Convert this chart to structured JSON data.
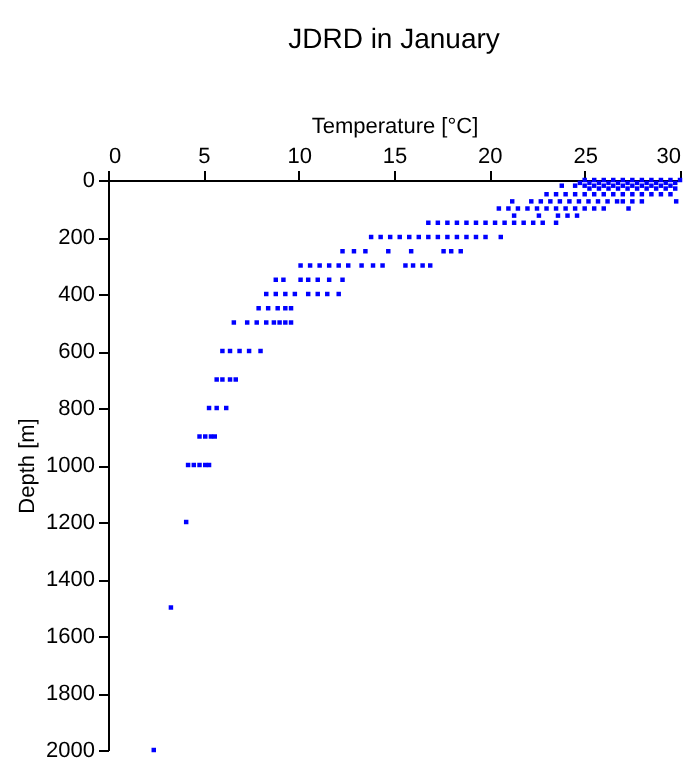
{
  "chart_data": {
    "type": "scatter",
    "title": "JDRD in January",
    "xlabel": "Temperature [°C]",
    "ylabel": "Depth [m]",
    "xlim": [
      0,
      30
    ],
    "xticks": [
      0,
      5,
      10,
      15,
      20,
      25,
      30
    ],
    "ylim": [
      2000,
      0
    ],
    "yticks": [
      0,
      200,
      400,
      600,
      800,
      1000,
      1200,
      1400,
      1600,
      1800,
      2000
    ],
    "grid": false,
    "legend": false,
    "marker": "square",
    "series": [
      {
        "color": "#0000ff",
        "x": [
          25.0,
          25.5,
          26.0,
          26.5,
          27.0,
          27.5,
          28.0,
          28.5,
          29.0,
          29.5,
          30.0,
          24.75,
          25.25,
          25.75,
          26.25,
          26.75,
          27.25,
          27.75,
          28.25,
          28.75,
          29.25,
          29.75,
          23.8,
          24.5,
          25.0,
          25.5,
          26.0,
          26.5,
          27.0,
          27.5,
          28.0,
          28.5,
          29.0,
          29.5,
          25.25,
          25.75,
          26.25,
          26.75,
          27.25,
          27.75,
          28.25,
          28.75,
          29.25,
          29.75,
          23.0,
          23.5,
          24.0,
          24.5,
          25.0,
          25.5,
          26.0,
          26.5,
          27.0,
          27.5,
          28.0,
          28.5,
          29.0,
          29.5,
          21.2,
          22.2,
          22.7,
          23.2,
          23.7,
          24.2,
          24.7,
          25.2,
          25.7,
          26.2,
          26.7,
          27.0,
          27.5,
          28.0,
          29.8,
          20.5,
          21.0,
          21.5,
          22.0,
          22.5,
          23.0,
          23.5,
          24.0,
          24.5,
          25.0,
          25.5,
          26.0,
          27.3,
          21.3,
          22.6,
          23.6,
          24.1,
          24.6,
          16.8,
          17.3,
          17.8,
          18.3,
          18.8,
          19.3,
          19.8,
          20.3,
          20.8,
          21.3,
          21.8,
          22.3,
          22.8,
          23.5,
          13.8,
          14.3,
          14.8,
          15.3,
          15.8,
          16.3,
          16.8,
          17.3,
          17.8,
          18.3,
          18.8,
          19.3,
          19.8,
          20.6,
          12.3,
          12.9,
          13.5,
          14.7,
          15.9,
          17.6,
          18.0,
          18.5,
          10.1,
          10.6,
          11.1,
          11.6,
          12.1,
          12.6,
          13.3,
          13.9,
          14.4,
          15.6,
          16.0,
          16.5,
          16.9,
          8.8,
          9.2,
          10.1,
          10.5,
          11.0,
          11.6,
          12.3,
          8.3,
          8.8,
          9.3,
          9.8,
          10.5,
          11.0,
          11.5,
          12.1,
          7.9,
          8.4,
          8.9,
          9.3,
          9.6,
          6.6,
          7.3,
          7.8,
          8.3,
          8.7,
          9.0,
          9.3,
          9.6,
          6.0,
          6.4,
          6.9,
          7.4,
          8.0,
          5.7,
          6.0,
          6.4,
          6.7,
          5.3,
          5.7,
          6.2,
          4.8,
          5.1,
          5.4,
          5.6,
          4.2,
          4.5,
          4.8,
          5.1,
          5.3,
          4.1,
          3.3,
          2.4
        ],
        "values": [
          0,
          0,
          0,
          0,
          0,
          0,
          0,
          0,
          0,
          0,
          0,
          10,
          10,
          10,
          10,
          10,
          10,
          10,
          10,
          10,
          10,
          10,
          20,
          20,
          20,
          20,
          20,
          20,
          20,
          20,
          20,
          20,
          20,
          20,
          30,
          30,
          30,
          30,
          30,
          30,
          30,
          30,
          30,
          30,
          50,
          50,
          50,
          50,
          50,
          50,
          50,
          50,
          50,
          50,
          50,
          50,
          50,
          50,
          75,
          75,
          75,
          75,
          75,
          75,
          75,
          75,
          75,
          75,
          75,
          75,
          75,
          75,
          75,
          100,
          100,
          100,
          100,
          100,
          100,
          100,
          100,
          100,
          100,
          100,
          100,
          100,
          125,
          125,
          125,
          125,
          125,
          150,
          150,
          150,
          150,
          150,
          150,
          150,
          150,
          150,
          150,
          150,
          150,
          150,
          150,
          200,
          200,
          200,
          200,
          200,
          200,
          200,
          200,
          200,
          200,
          200,
          200,
          200,
          200,
          250,
          250,
          250,
          250,
          250,
          250,
          250,
          250,
          300,
          300,
          300,
          300,
          300,
          300,
          300,
          300,
          300,
          300,
          300,
          300,
          300,
          350,
          350,
          350,
          350,
          350,
          350,
          350,
          400,
          400,
          400,
          400,
          400,
          400,
          400,
          400,
          450,
          450,
          450,
          450,
          450,
          500,
          500,
          500,
          500,
          500,
          500,
          500,
          500,
          600,
          600,
          600,
          600,
          600,
          700,
          700,
          700,
          700,
          800,
          800,
          800,
          900,
          900,
          900,
          900,
          1000,
          1000,
          1000,
          1000,
          1000,
          1200,
          1500,
          2000
        ]
      }
    ]
  }
}
